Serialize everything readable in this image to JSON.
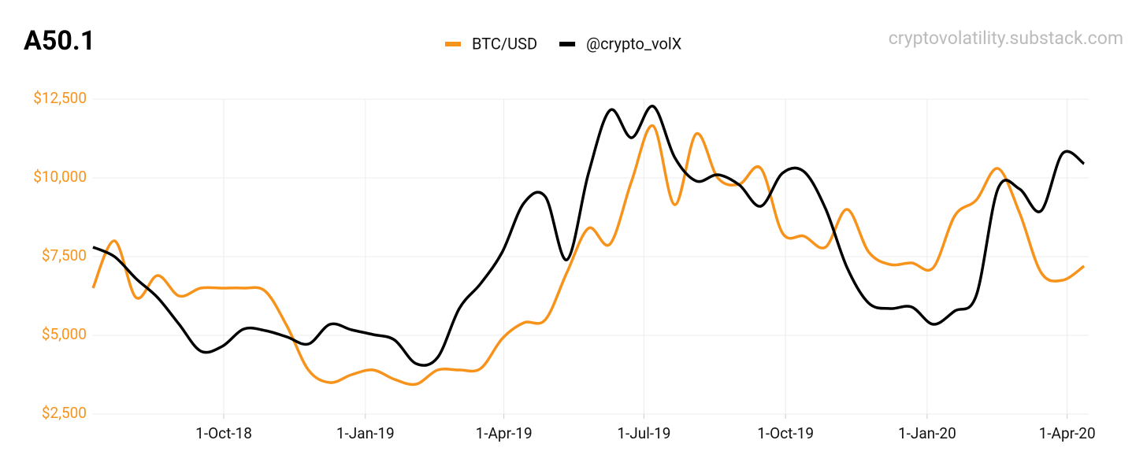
{
  "chart_data": {
    "type": "line",
    "title": "A50.1",
    "source": "cryptovolatility.substack.com",
    "x": [
      "2018-07-08",
      "2018-07-22",
      "2018-08-05",
      "2018-08-19",
      "2018-09-02",
      "2018-09-16",
      "2018-09-30",
      "2018-10-14",
      "2018-10-28",
      "2018-11-11",
      "2018-11-25",
      "2018-12-09",
      "2018-12-23",
      "2019-01-06",
      "2019-01-20",
      "2019-02-03",
      "2019-02-17",
      "2019-03-03",
      "2019-03-17",
      "2019-03-31",
      "2019-04-14",
      "2019-04-28",
      "2019-05-12",
      "2019-05-26",
      "2019-06-09",
      "2019-06-23",
      "2019-07-07",
      "2019-07-21",
      "2019-08-04",
      "2019-08-18",
      "2019-09-01",
      "2019-09-15",
      "2019-09-29",
      "2019-10-13",
      "2019-10-27",
      "2019-11-10",
      "2019-11-24",
      "2019-12-08",
      "2019-12-22",
      "2020-01-05",
      "2020-01-19",
      "2020-02-02",
      "2020-02-16",
      "2020-03-01",
      "2020-03-15",
      "2020-03-29",
      "2020-04-12"
    ],
    "series": [
      {
        "name": "BTC/USD",
        "color": "#f7931a",
        "values": [
          6500,
          8000,
          6200,
          6900,
          6250,
          6500,
          6500,
          6500,
          6400,
          5300,
          3900,
          3500,
          3750,
          3900,
          3600,
          3450,
          3900,
          3900,
          3950,
          4900,
          5400,
          5500,
          7000,
          8400,
          7900,
          9900,
          11650,
          9150,
          11400,
          10000,
          9800,
          10300,
          8250,
          8150,
          7800,
          9000,
          7650,
          7250,
          7300,
          7150,
          8800,
          9300,
          10300,
          8900,
          7000,
          6750,
          7200
        ]
      },
      {
        "name": "@crypto_volX",
        "color": "#000000",
        "values": [
          7800,
          7500,
          6800,
          6200,
          5350,
          4500,
          4650,
          5200,
          5150,
          4950,
          4725,
          5350,
          5175,
          5025,
          4850,
          4100,
          4300,
          5850,
          6650,
          7650,
          9200,
          9400,
          7400,
          10150,
          12150,
          11275,
          12275,
          10650,
          9900,
          10100,
          9775,
          9100,
          10150,
          10200,
          9025,
          7150,
          6025,
          5850,
          5900,
          5350,
          5775,
          6275,
          9650,
          9650,
          8950,
          10775,
          10450
        ]
      }
    ],
    "xlim": [
      "2018-07-08",
      "2020-04-15"
    ],
    "xticks": [
      {
        "value": "2018-10-01",
        "label": "1-Oct-18"
      },
      {
        "value": "2019-01-01",
        "label": "1-Jan-19"
      },
      {
        "value": "2019-04-01",
        "label": "1-Apr-19"
      },
      {
        "value": "2019-07-01",
        "label": "1-Jul-19"
      },
      {
        "value": "2019-10-01",
        "label": "1-Oct-19"
      },
      {
        "value": "2020-01-01",
        "label": "1-Jan-20"
      },
      {
        "value": "2020-04-01",
        "label": "1-Apr-20"
      }
    ],
    "ylim": [
      2500,
      12500
    ],
    "yticks": [
      {
        "value": 2500,
        "label": "$2,500"
      },
      {
        "value": 5000,
        "label": "$5,000"
      },
      {
        "value": 7500,
        "label": "$7,500"
      },
      {
        "value": 10000,
        "label": "$10,000"
      },
      {
        "value": 12500,
        "label": "$12,500"
      }
    ],
    "ytick_color": "#f7931a",
    "grid": true,
    "legend": "top"
  }
}
